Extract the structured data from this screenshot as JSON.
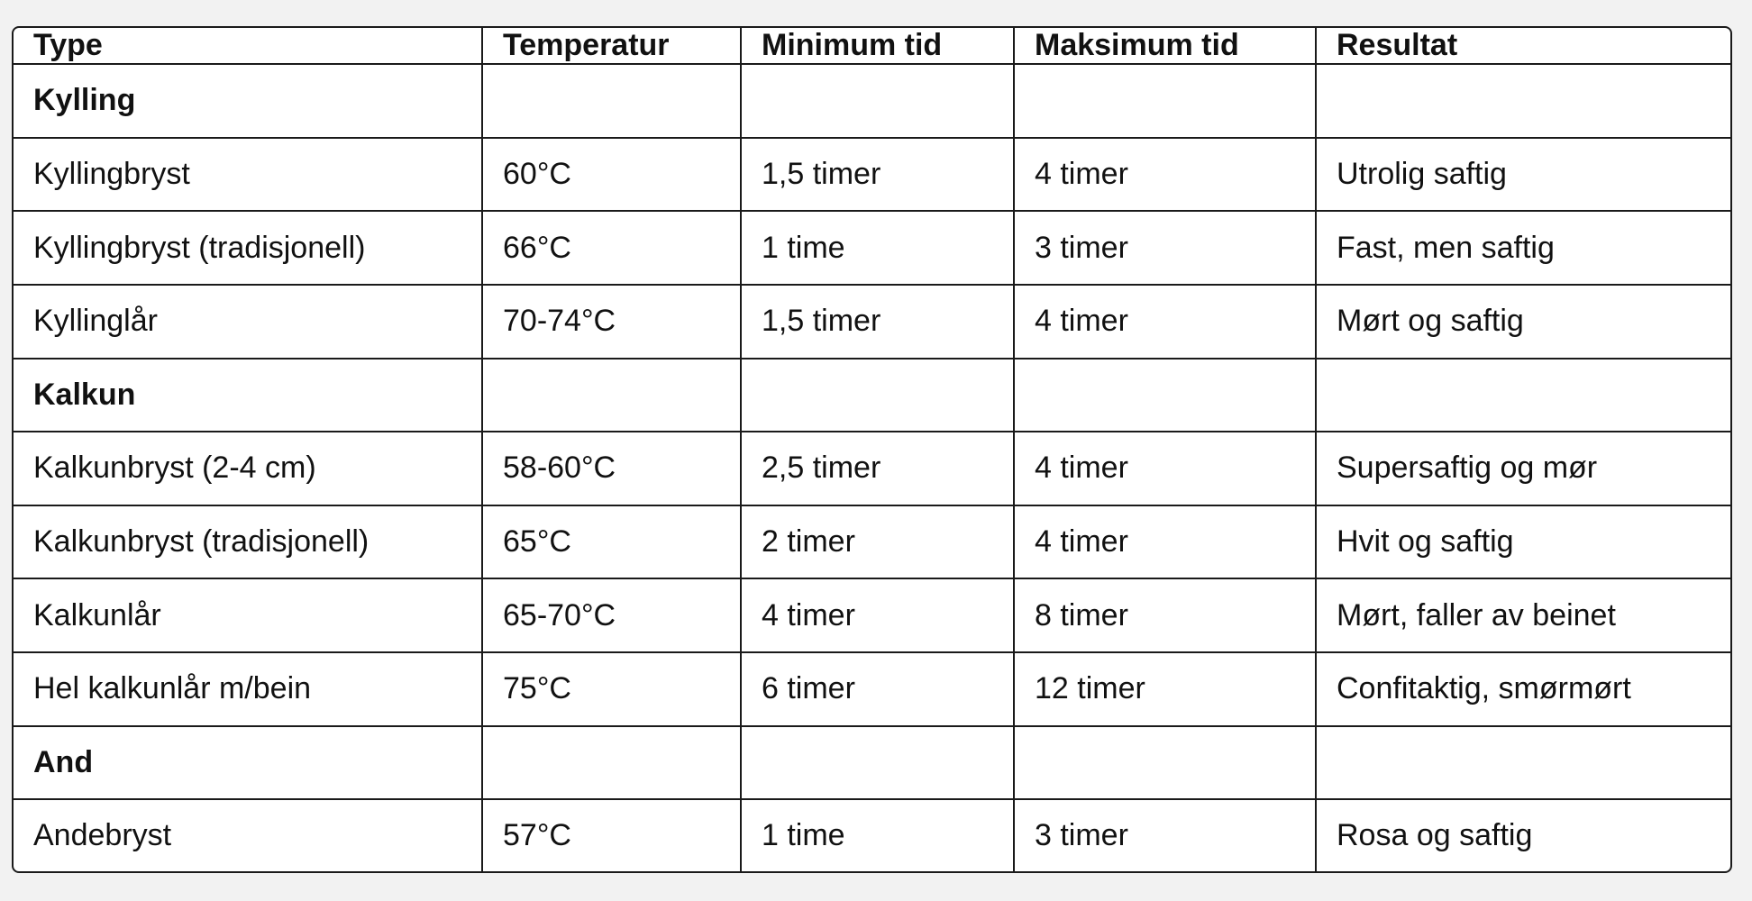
{
  "table": {
    "headers": [
      "Type",
      "Temperatur",
      "Minimum tid",
      "Maksimum tid",
      "Resultat"
    ],
    "rows": [
      {
        "category": true,
        "cells": [
          "Kylling",
          "",
          "",
          "",
          ""
        ]
      },
      {
        "category": false,
        "cells": [
          "Kyllingbryst",
          "60°C",
          "1,5 timer",
          "4 timer",
          "Utrolig saftig"
        ]
      },
      {
        "category": false,
        "cells": [
          "Kyllingbryst (tradisjonell)",
          "66°C",
          "1 time",
          "3 timer",
          "Fast, men saftig"
        ]
      },
      {
        "category": false,
        "cells": [
          "Kyllinglår",
          "70-74°C",
          "1,5 timer",
          "4 timer",
          "Mørt og saftig"
        ]
      },
      {
        "category": true,
        "cells": [
          "Kalkun",
          "",
          "",
          "",
          ""
        ]
      },
      {
        "category": false,
        "cells": [
          "Kalkunbryst (2-4 cm)",
          "58-60°C",
          "2,5 timer",
          "4 timer",
          "Supersaftig og mør"
        ]
      },
      {
        "category": false,
        "cells": [
          "Kalkunbryst (tradisjonell)",
          "65°C",
          "2 timer",
          "4 timer",
          "Hvit og saftig"
        ]
      },
      {
        "category": false,
        "cells": [
          "Kalkunlår",
          "65-70°C",
          "4 timer",
          "8 timer",
          "Mørt, faller av beinet"
        ]
      },
      {
        "category": false,
        "cells": [
          "Hel kalkunlår m/bein",
          "75°C",
          "6 timer",
          "12 timer",
          "Confitaktig, smørmørt"
        ]
      },
      {
        "category": true,
        "cells": [
          "And",
          "",
          "",
          "",
          ""
        ]
      },
      {
        "category": false,
        "cells": [
          "Andebryst",
          "57°C",
          "1 time",
          "3 timer",
          "Rosa og saftig"
        ]
      }
    ]
  }
}
